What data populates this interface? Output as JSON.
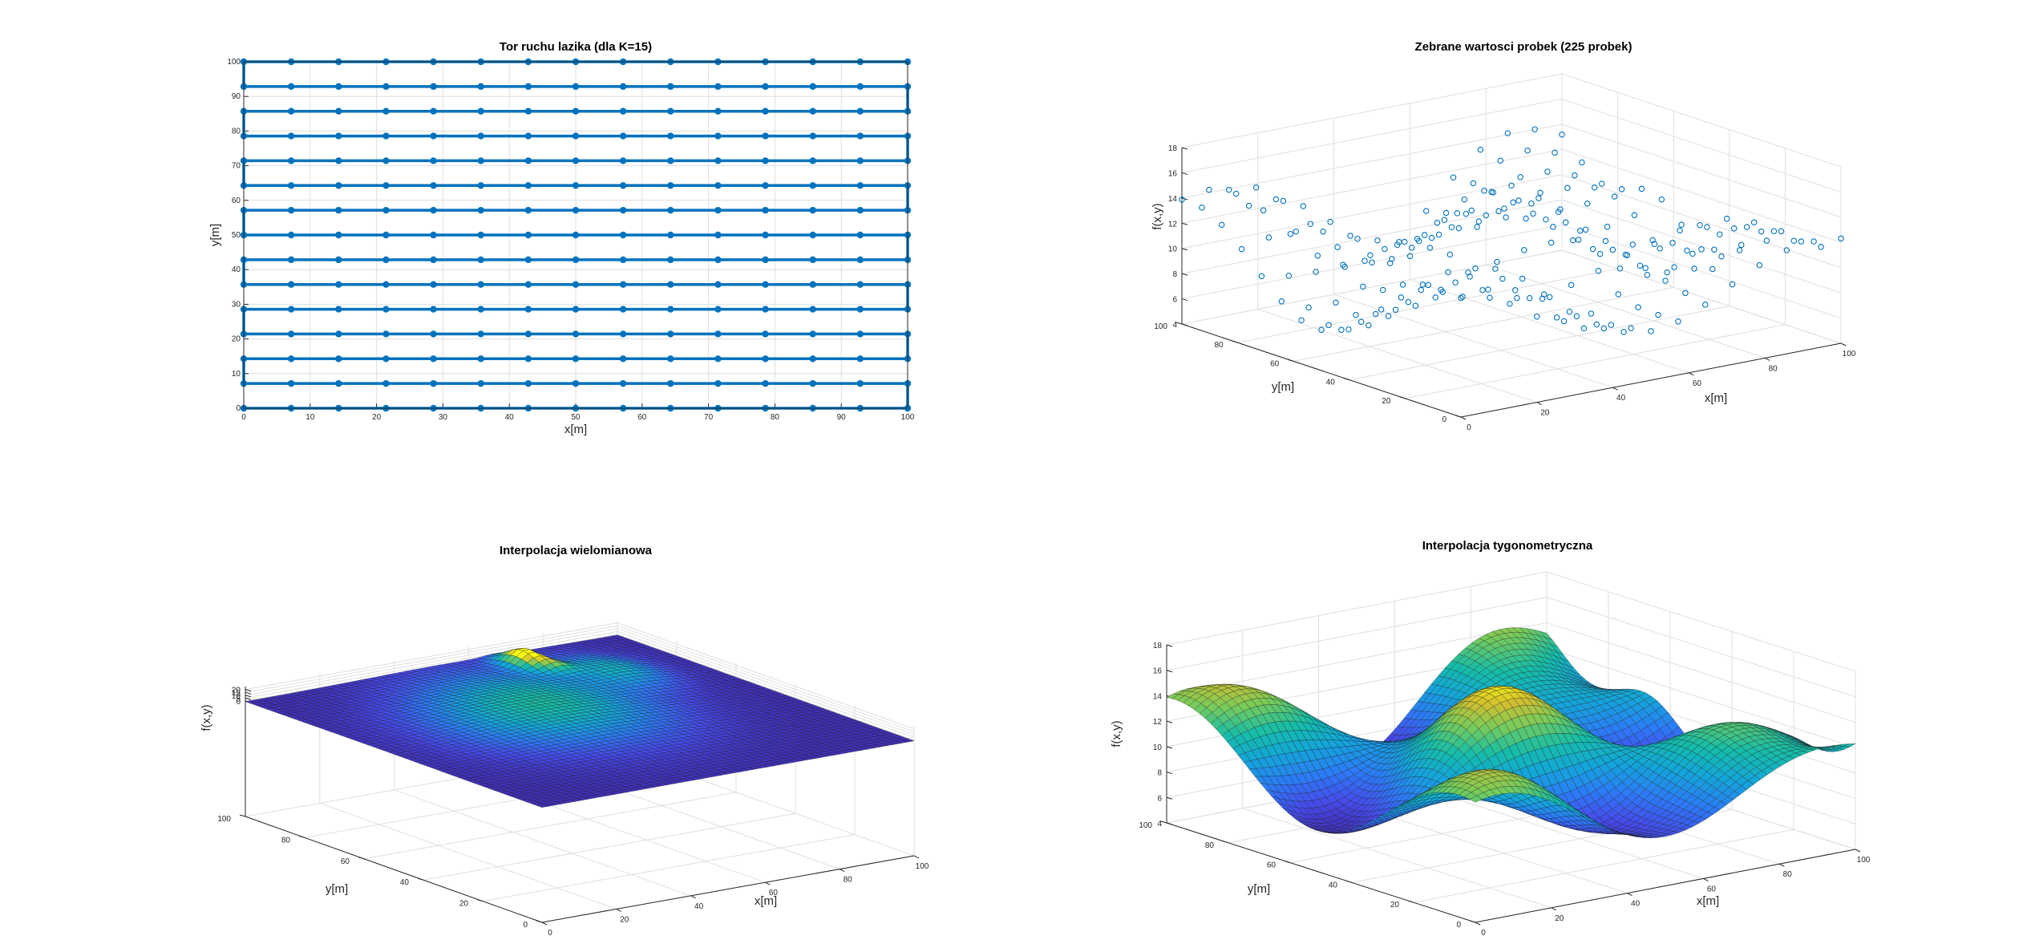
{
  "figure": {
    "background": "#ffffff"
  },
  "colors": {
    "line": "#0072BD",
    "axis": "#262626",
    "grid": "#dfdfdf",
    "marker": "#0072BD"
  },
  "chart_data": [
    {
      "type": "line",
      "title": "Tor ruchu lazika (dla K=15)",
      "xlabel": "x[m]",
      "ylabel": "y[m]",
      "xlim": [
        0,
        100
      ],
      "ylim": [
        0,
        100
      ],
      "xticks": [
        "0",
        "10",
        "20",
        "30",
        "40",
        "50",
        "60",
        "70",
        "80",
        "90",
        "100"
      ],
      "yticks": [
        "0",
        "10",
        "20",
        "30",
        "40",
        "50",
        "60",
        "70",
        "80",
        "90",
        "100"
      ],
      "grid": true,
      "series": [
        {
          "path": "serpentine",
          "x_points": [
            0,
            7.142857,
            14.285714,
            21.428571,
            28.571429,
            35.714286,
            42.857143,
            50,
            57.142857,
            64.285714,
            71.428571,
            78.571429,
            85.714286,
            92.857143,
            100
          ],
          "y_rows": [
            0,
            7.142857,
            14.285714,
            21.428571,
            28.571429,
            35.714286,
            42.857143,
            50,
            57.142857,
            64.285714,
            71.428571,
            78.571429,
            85.714286,
            92.857143,
            100
          ]
        }
      ]
    },
    {
      "type": "scatter",
      "title": "Zebrane wartosci probek (225 probek)",
      "xlabel": "x[m]",
      "ylabel": "y[m]",
      "zlabel": "f(x,y)",
      "xlim": [
        0,
        100
      ],
      "ylim": [
        0,
        100
      ],
      "zlim": [
        4,
        18
      ],
      "xticks": [
        "0",
        "20",
        "40",
        "60",
        "80",
        "100"
      ],
      "yticks": [
        "0",
        "20",
        "40",
        "60",
        "80",
        "100"
      ],
      "zticks": [
        "4",
        "6",
        "8",
        "10",
        "12",
        "14",
        "16",
        "18"
      ],
      "grid": true,
      "marker": "open-circle",
      "sample_count": 225
    },
    {
      "type": "surface",
      "title": "Interpolacja wielomianowa",
      "xlabel": "x[m]",
      "ylabel": "y[m]",
      "zlabel": "f(x,y)",
      "xlim": [
        0,
        100
      ],
      "ylim": [
        0,
        100
      ],
      "zlim": [
        -200,
        25
      ],
      "xticks": [
        "0",
        "20",
        "40",
        "60",
        "80",
        "100"
      ],
      "yticks": [
        "0",
        "20",
        "40",
        "60",
        "80",
        "100"
      ],
      "zticks": [
        "0",
        "5",
        "10",
        "15",
        "20"
      ],
      "grid": true,
      "colormap": "parula"
    },
    {
      "type": "surface",
      "title": "Interpolacja tygonometryczna",
      "xlabel": "x[m]",
      "ylabel": "y[m]",
      "zlabel": "f(x,y)",
      "xlim": [
        0,
        100
      ],
      "ylim": [
        0,
        100
      ],
      "zlim": [
        4,
        18
      ],
      "xticks": [
        "0",
        "20",
        "40",
        "60",
        "80",
        "100"
      ],
      "yticks": [
        "0",
        "20",
        "40",
        "60",
        "80",
        "100"
      ],
      "zticks": [
        "4",
        "6",
        "8",
        "10",
        "12",
        "14",
        "16",
        "18"
      ],
      "grid": true,
      "colormap": "parula"
    }
  ]
}
